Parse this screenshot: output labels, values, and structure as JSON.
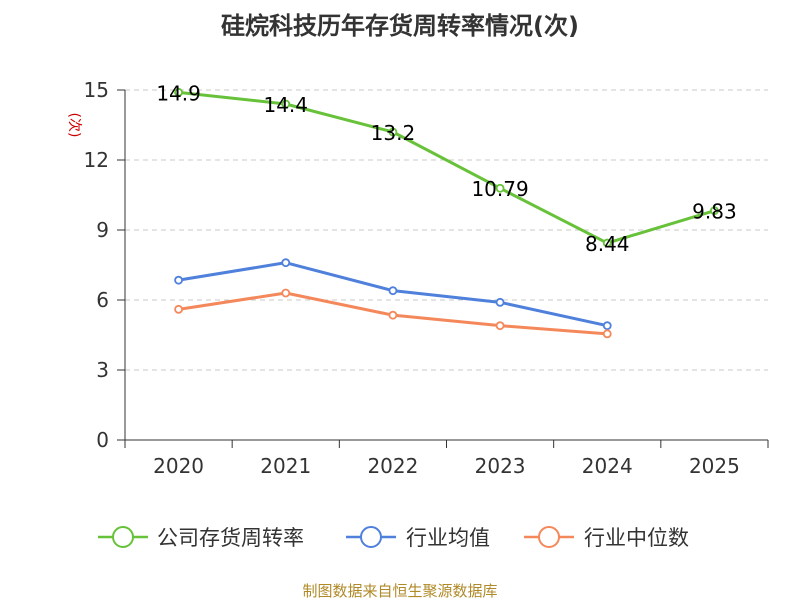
{
  "chart_data": {
    "type": "line",
    "title": "硅烷科技历年存货周转率情况(次)",
    "ylabel": "(次)",
    "xlabel": "",
    "categories": [
      "2020",
      "2021",
      "2022",
      "2023",
      "2024",
      "2025"
    ],
    "ylim": [
      0,
      15
    ],
    "yticks": [
      0,
      3,
      6,
      9,
      12,
      15
    ],
    "grid": true,
    "legend_position": "bottom",
    "series": [
      {
        "name": "公司存货周转率",
        "color": "#67c23a",
        "values": [
          14.9,
          14.4,
          13.2,
          10.79,
          8.44,
          9.83
        ],
        "labels": [
          "14.9",
          "14.4",
          "13.2",
          "10.79",
          "8.44",
          "9.83"
        ]
      },
      {
        "name": "行业均值",
        "color": "#4e80dc",
        "values": [
          6.85,
          7.6,
          6.4,
          5.9,
          4.9,
          null
        ]
      },
      {
        "name": "行业中位数",
        "color": "#f5885a",
        "values": [
          5.6,
          6.3,
          5.35,
          4.9,
          4.55,
          null
        ]
      }
    ],
    "source": "制图数据来自恒生聚源数据库"
  }
}
